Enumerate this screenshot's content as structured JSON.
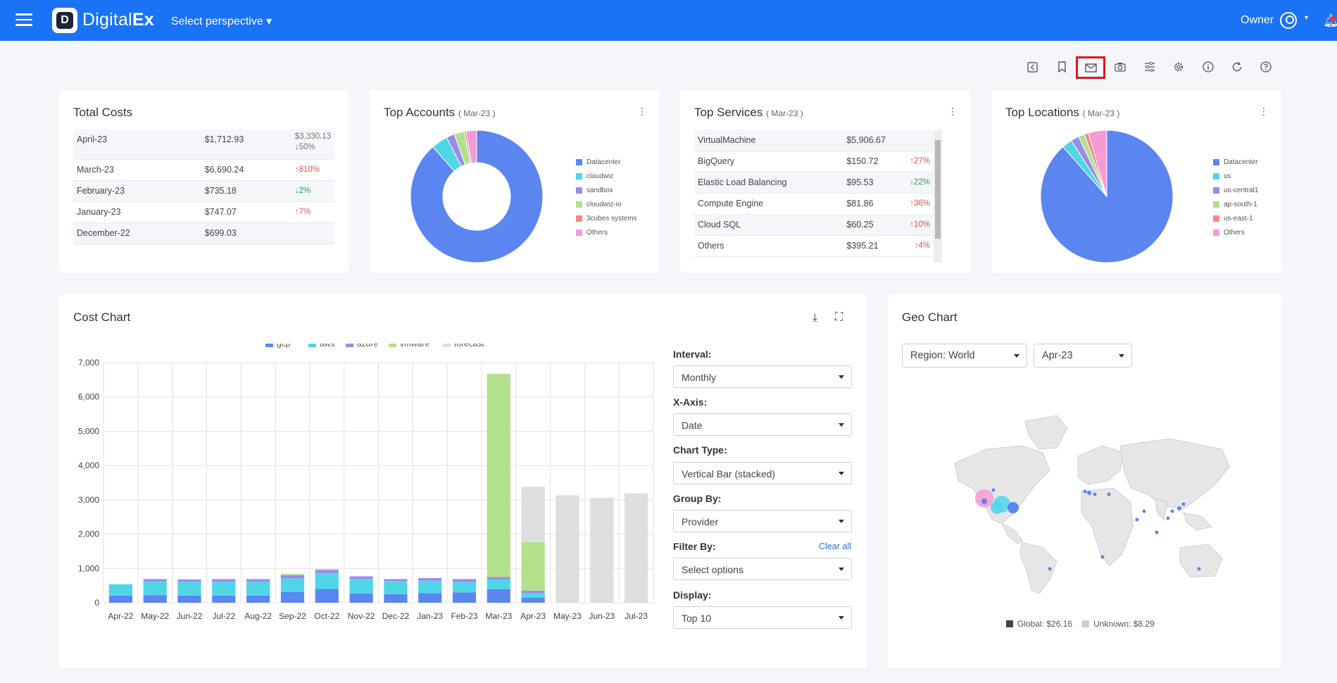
{
  "app": {
    "brand_light": "Digital",
    "brand_bold": "Ex",
    "logo_letter": "D",
    "perspective": "Select perspective ▾",
    "owner": "Owner",
    "owner_caret": "▾"
  },
  "toolbar": [
    "share-icon",
    "bookmark-icon",
    "email-icon",
    "camera-icon",
    "sliders-icon",
    "gear-icon",
    "info-icon",
    "refresh-icon",
    "help-icon"
  ],
  "total_costs": {
    "title": "Total Costs",
    "rows": [
      {
        "month": "April-23",
        "cost": "$1,712.93",
        "extra": "$3,330.13",
        "change": "↓50%",
        "dir": "down"
      },
      {
        "month": "March-23",
        "cost": "$6,690.24",
        "change": "↑810%",
        "dir": "up"
      },
      {
        "month": "February-23",
        "cost": "$735.18",
        "change": "↓2%",
        "dir": "down"
      },
      {
        "month": "January-23",
        "cost": "$747.07",
        "change": "↑7%",
        "dir": "up"
      },
      {
        "month": "December-22",
        "cost": "$699.03",
        "change": "",
        "dir": ""
      }
    ]
  },
  "top_accounts": {
    "title": "Top Accounts",
    "period": "( Mar-23 )",
    "legend": [
      "Datacenter",
      "cloudwiz",
      "sandbox",
      "cloudwiz-io",
      "3cubes systems",
      "Others"
    ]
  },
  "top_services": {
    "title": "Top Services",
    "period": "( Mar-23 )",
    "rows": [
      {
        "name": "VirtualMachine",
        "cost": "$5,906.67",
        "change": "",
        "dir": ""
      },
      {
        "name": "BigQuery",
        "cost": "$150.72",
        "change": "↑27%",
        "dir": "up"
      },
      {
        "name": "Elastic Load Balancing",
        "cost": "$95.53",
        "change": "↓22%",
        "dir": "down"
      },
      {
        "name": "Compute Engine",
        "cost": "$81.86",
        "change": "↑36%",
        "dir": "up"
      },
      {
        "name": "Cloud SQL",
        "cost": "$60.25",
        "change": "↑10%",
        "dir": "up"
      },
      {
        "name": "Others",
        "cost": "$395.21",
        "change": "↑4%",
        "dir": "up"
      }
    ]
  },
  "top_locations": {
    "title": "Top Locations",
    "period": "( Mar-23 )",
    "legend": [
      "Datacenter",
      "us",
      "us-central1",
      "ap-south-1",
      "us-east-1",
      "Others"
    ]
  },
  "colors": {
    "blue": "#5b85f0",
    "cyan": "#4fd6e6",
    "purple": "#9b8ce8",
    "green": "#b3e08a",
    "red": "#f28b82",
    "pink": "#f59ad5",
    "gray": "#dedede",
    "topbar": "#1a73f5"
  },
  "cost_chart": {
    "title": "Cost Chart",
    "download": "⤓",
    "expand": "⛶"
  },
  "filters": {
    "interval_label": "Interval:",
    "interval_value": "Monthly",
    "xaxis_label": "X-Axis:",
    "xaxis_value": "Date",
    "charttype_label": "Chart Type:",
    "charttype_value": "Vertical Bar (stacked)",
    "groupby_label": "Group By:",
    "groupby_value": "Provider",
    "filterby_label": "Filter By:",
    "filterby_value": "Select options",
    "clear_all": "Clear all",
    "display_label": "Display:",
    "display_value": "Top 10"
  },
  "geo_chart": {
    "title": "Geo Chart",
    "region": "Region: World",
    "month": "Apr-23",
    "global_label": "Global: $26.16",
    "unknown_label": "Unknown: $8.29"
  },
  "chart_data": [
    {
      "type": "bar",
      "stacked": true,
      "title": "",
      "categories": [
        "Apr-22",
        "May-22",
        "Jun-22",
        "Jul-22",
        "Aug-22",
        "Sep-22",
        "Oct-22",
        "Nov-22",
        "Dec-22",
        "Jan-23",
        "Feb-23",
        "Mar-23",
        "Apr-23",
        "May-23",
        "Jun-23",
        "Jul-23"
      ],
      "ylim": [
        0,
        7000
      ],
      "yticks": [
        "0",
        "1,000",
        "2,000",
        "3,000",
        "4,000",
        "5,000",
        "6,000",
        "7,000"
      ],
      "legend": [
        "gcp",
        "aws",
        "azure",
        "vmware",
        "forecast"
      ],
      "series": [
        {
          "name": "gcp",
          "color": "#5b85f0",
          "values": [
            210,
            220,
            210,
            210,
            210,
            310,
            400,
            270,
            250,
            280,
            300,
            390,
            150,
            0,
            0,
            0
          ]
        },
        {
          "name": "aws",
          "color": "#4fd6e6",
          "values": [
            330,
            400,
            400,
            400,
            400,
            400,
            460,
            420,
            380,
            360,
            300,
            280,
            120,
            0,
            0,
            0
          ]
        },
        {
          "name": "azure",
          "color": "#9b8ce8",
          "values": [
            0,
            70,
            70,
            80,
            80,
            90,
            100,
            80,
            60,
            80,
            90,
            80,
            80,
            0,
            0,
            0
          ]
        },
        {
          "name": "vmware",
          "color": "#b3e08a",
          "values": [
            0,
            0,
            0,
            0,
            0,
            40,
            20,
            0,
            0,
            0,
            0,
            5920,
            1420,
            0,
            0,
            0
          ]
        },
        {
          "name": "forecast",
          "color": "#dedede",
          "values": [
            0,
            0,
            0,
            0,
            0,
            0,
            0,
            0,
            0,
            0,
            0,
            0,
            1610,
            3130,
            3060,
            3190
          ]
        }
      ]
    },
    {
      "type": "pie",
      "title": "Top Accounts",
      "donut": true,
      "labels": [
        "Datacenter",
        "cloudwiz",
        "sandbox",
        "cloudwiz-io",
        "3cubes systems",
        "Others"
      ],
      "values": [
        88.5,
        4.0,
        2.0,
        2.5,
        0.5,
        2.5
      ]
    },
    {
      "type": "pie",
      "title": "Top Locations",
      "donut": false,
      "labels": [
        "Datacenter",
        "us",
        "us-central1",
        "ap-south-1",
        "us-east-1",
        "Others"
      ],
      "values": [
        88.5,
        2.5,
        2.0,
        1.5,
        1.0,
        4.5
      ]
    }
  ]
}
